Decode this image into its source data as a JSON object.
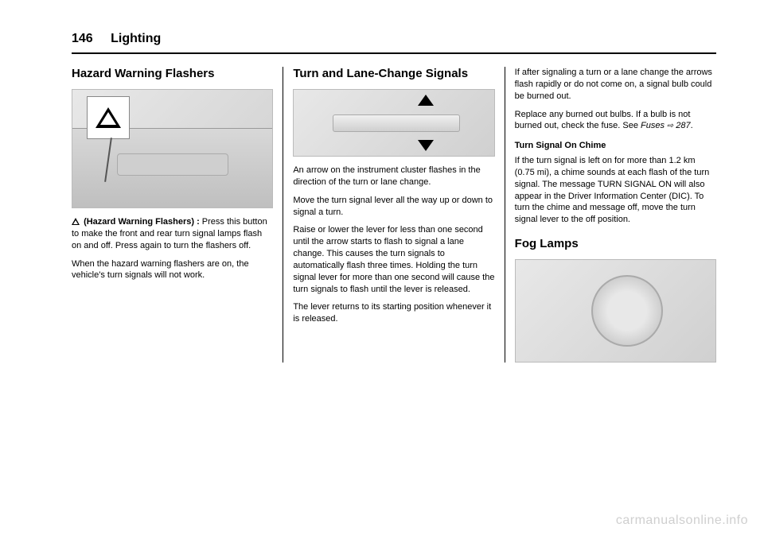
{
  "header": {
    "page_number": "146",
    "chapter": "Lighting"
  },
  "col1": {
    "h1": "Hazard Warning Flashers",
    "p1_label": "(Hazard Warning Flashers) :",
    "p1": "Press this button to make the front and rear turn signal lamps flash on and off. Press again to turn the flashers off.",
    "p2": "When the hazard warning flashers are on, the vehicle's turn signals will not work."
  },
  "col2": {
    "h1": "Turn and Lane-Change Signals",
    "p1": "An arrow on the instrument cluster flashes in the direction of the turn or lane change.",
    "p2": "Move the turn signal lever all the way up or down to signal a turn.",
    "p3": "Raise or lower the lever for less than one second until the arrow starts to flash to signal a lane change. This causes the turn signals to automatically flash three times. Holding the turn signal lever for more than one second will cause the turn signals to flash until the lever is released.",
    "p4": "The lever returns to its starting position whenever it is released."
  },
  "col3": {
    "p1": "If after signaling a turn or a lane change the arrows flash rapidly or do not come on, a signal bulb could be burned out.",
    "p2a": "Replace any burned out bulbs. If a bulb is not burned out, check the fuse. See ",
    "p2b": "Fuses",
    "p2c": " 287",
    "p2d": ".",
    "sub1": "Turn Signal On Chime",
    "p3": "If the turn signal is left on for more than 1.2 km (0.75 mi), a chime sounds at each flash of the turn signal. The message TURN SIGNAL ON will also appear in the Driver Information Center (DIC). To turn the chime and message off, move the turn signal lever to the off position.",
    "h2": "Fog Lamps"
  },
  "watermark": "carmanualsonline.info"
}
